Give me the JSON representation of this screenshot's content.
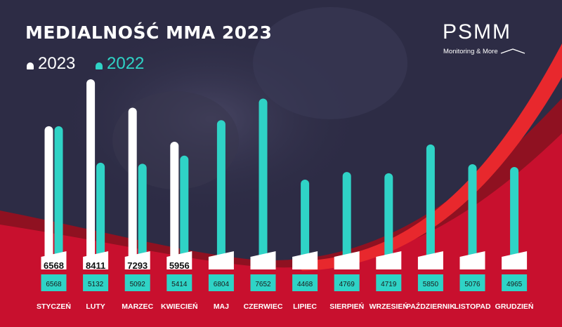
{
  "header": {
    "title": "MEDIALNOŚĆ MMA 2023"
  },
  "logo": {
    "name": "PSMM",
    "tagline": "Monitoring & More"
  },
  "colors": {
    "background": "#2d2c45",
    "accent_red": "#c8102e",
    "bar_2023": "#ffffff",
    "bar_2022": "#2fd3c6"
  },
  "chart_data": {
    "type": "bar",
    "title": "MEDIALNOŚĆ MMA 2023",
    "categories": [
      "STYCZEŃ",
      "LUTY",
      "MARZEC",
      "KWIECIEŃ",
      "MAJ",
      "CZERWIEC",
      "LIPIEC",
      "SIERPIEŃ",
      "WRZESIEŃ",
      "PAŹDZIERNIK",
      "LISTOPAD",
      "GRUDZIEŃ"
    ],
    "series": [
      {
        "name": "2023",
        "values": [
          6568,
          8411,
          7293,
          5956,
          null,
          null,
          null,
          null,
          null,
          null,
          null,
          null
        ]
      },
      {
        "name": "2022",
        "values": [
          6568,
          5132,
          5092,
          5414,
          6804,
          7652,
          4468,
          4769,
          4719,
          5850,
          5076,
          4965
        ]
      }
    ],
    "legend_position": "top-left",
    "grid": false
  }
}
